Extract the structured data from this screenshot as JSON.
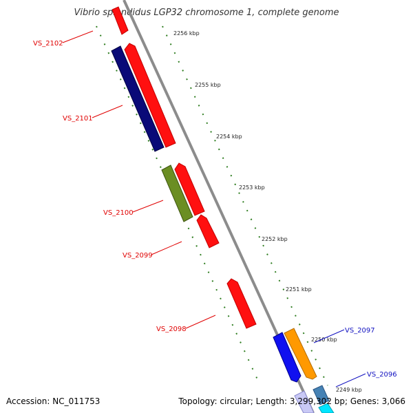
{
  "title": "Vibrio splendidus LGP32 chromosome 1, complete genome",
  "accession": "Accession: NC_011753",
  "summary": "Topology: circular; Length: 3,299,302 bp; Genes: 3,066",
  "kbp_ticks": [
    "2256 kbp",
    "2255 kbp",
    "2254 kbp",
    "2253 kbp",
    "2252 kbp",
    "2251 kbp",
    "2250 kbp",
    "2249 kbp"
  ],
  "gene_labels": {
    "VS_2102": "VS_2102",
    "VS_2101": "VS_2101",
    "VS_2100": "VS_2100",
    "VS_2099": "VS_2099",
    "VS_2098": "VS_2098",
    "VS_2097": "VS_2097",
    "VS_2096": "VS_2096"
  },
  "colors": {
    "backbone": "#8c8c8c",
    "tick_dots": "#2e7d1f",
    "reverse_label": "#e00000",
    "forward_label": "#1010c0",
    "red_cds": "#ff1010",
    "navy_cds": "#0a0a78",
    "olive_cds": "#6b8e23",
    "blue_cds": "#1010f0",
    "orange_cds": "#ff9900",
    "steel_cds": "#4682b4",
    "cyan_cds": "#00e5ff"
  }
}
